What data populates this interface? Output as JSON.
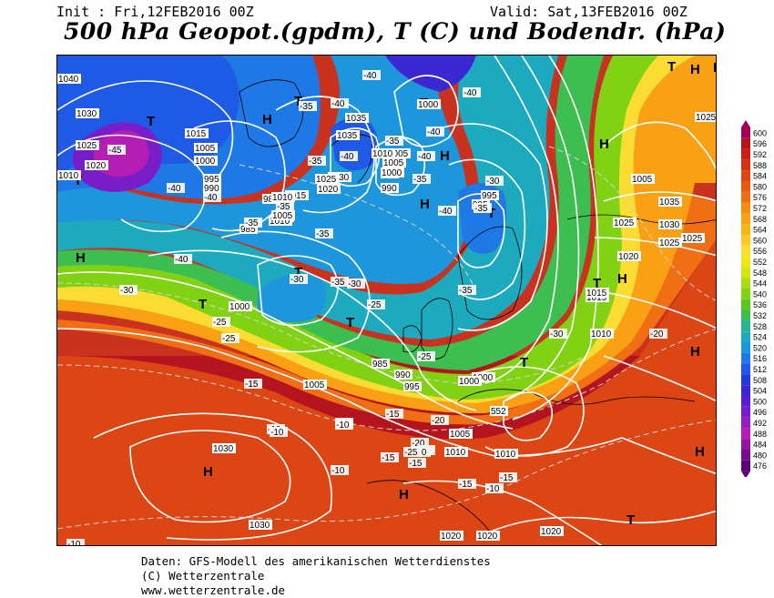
{
  "header": {
    "init": "Init : Fri,12FEB2016 00Z",
    "valid": "Valid: Sat,13FEB2016 00Z",
    "title": "500 hPa Geopot.(gpdm), T (C) und Bodendr. (hPa)"
  },
  "legend": {
    "values": [
      "600",
      "596",
      "592",
      "588",
      "584",
      "580",
      "576",
      "572",
      "568",
      "564",
      "560",
      "556",
      "552",
      "548",
      "544",
      "540",
      "536",
      "532",
      "528",
      "524",
      "520",
      "516",
      "512",
      "508",
      "504",
      "500",
      "496",
      "492",
      "488",
      "484",
      "480",
      "476"
    ],
    "colors": [
      "#a0005a",
      "#b4141e",
      "#c81e14",
      "#d23214",
      "#dc4614",
      "#e65a14",
      "#f06e14",
      "#f58c14",
      "#faa014",
      "#fab414",
      "#fac828",
      "#fadc32",
      "#f0e614",
      "#d2e614",
      "#aadc14",
      "#82d214",
      "#5ac81e",
      "#3cbe50",
      "#28b48c",
      "#1eaabe",
      "#1e96dc",
      "#1e78e6",
      "#1e5ae6",
      "#1e3cdc",
      "#3c28d2",
      "#5a1ed2",
      "#781ec8",
      "#961ebe",
      "#b41eb4",
      "#9614a0",
      "#780a8c",
      "#5a0078"
    ]
  },
  "markers": {
    "high": "H",
    "low": "T"
  },
  "pressure_labels": [
    "1040",
    "1030",
    "1025",
    "1020",
    "1010",
    "1015",
    "1005",
    "1000",
    "995",
    "990",
    "985",
    "980",
    "1035",
    "1030",
    "1035",
    "1005",
    "1000",
    "995",
    "990",
    "1010",
    "1025",
    "1020",
    "1015",
    "1010",
    "1005",
    "1000",
    "995",
    "1005",
    "1010",
    "985",
    "990",
    "995",
    "1000",
    "1005",
    "1010",
    "1005",
    "1015",
    "1000",
    "995",
    "985",
    "1020",
    "1025",
    "1030",
    "1035",
    "1015",
    "1010",
    "1025",
    "1030",
    "1030",
    "1020",
    "1020",
    "1020",
    "1025",
    "1025",
    "1000",
    "1005",
    "1010",
    "552"
  ],
  "temperature_labels": [
    "-40",
    "-40",
    "-45",
    "-40",
    "-35",
    "-40",
    "-40",
    "-40",
    "-40",
    "-35",
    "-35",
    "-35",
    "-40",
    "-35",
    "-40",
    "-40",
    "-35",
    "-30",
    "-35",
    "-35",
    "-35",
    "-35",
    "-30",
    "-30",
    "-25",
    "-25",
    "-30",
    "-25",
    "-25",
    "-20",
    "-20",
    "-15",
    "-15",
    "-15",
    "-15",
    "-15",
    "-15",
    "-10",
    "-10",
    "-10",
    "-15",
    "-15",
    "-20",
    "-25",
    "-30",
    "-20",
    "-10",
    "-10",
    "-10"
  ],
  "footer": {
    "line1": "Daten: GFS-Modell des amerikanischen Wetterdienstes",
    "line2": "(C) Wetterzentrale",
    "line3": "www.wetterzentrale.de"
  }
}
